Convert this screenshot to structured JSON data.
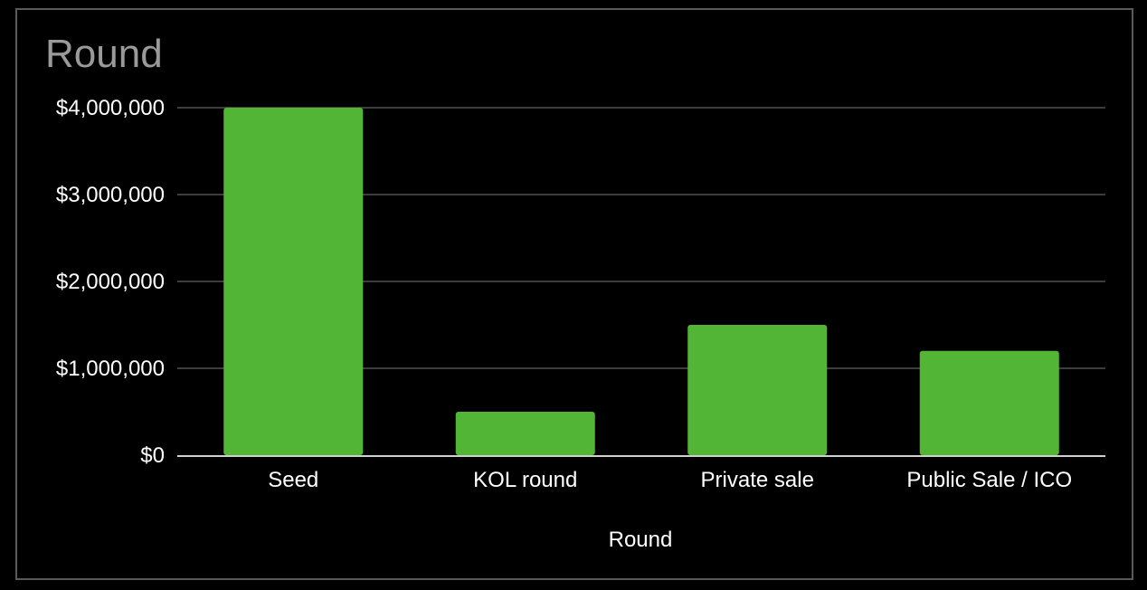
{
  "chart_data": {
    "type": "bar",
    "title": "Round",
    "xlabel": "Round",
    "ylabel": "",
    "categories": [
      "Seed",
      "KOL round",
      "Private sale",
      "Public Sale / ICO"
    ],
    "values": [
      4000000,
      500000,
      1500000,
      1200000
    ],
    "ylim": [
      0,
      4000000
    ],
    "yticks": [
      0,
      1000000,
      2000000,
      3000000,
      4000000
    ],
    "ytick_labels": [
      "$0",
      "$1,000,000",
      "$2,000,000",
      "$3,000,000",
      "$4,000,000"
    ],
    "grid": true,
    "legend": "none",
    "colors": {
      "bar": "#52b535",
      "background": "#000000",
      "grid": "#3d3d3d",
      "baseline": "#cfcfcf",
      "text": "#ffffff",
      "title": "#9a9a9a",
      "frame": "#5a5a5a"
    }
  }
}
